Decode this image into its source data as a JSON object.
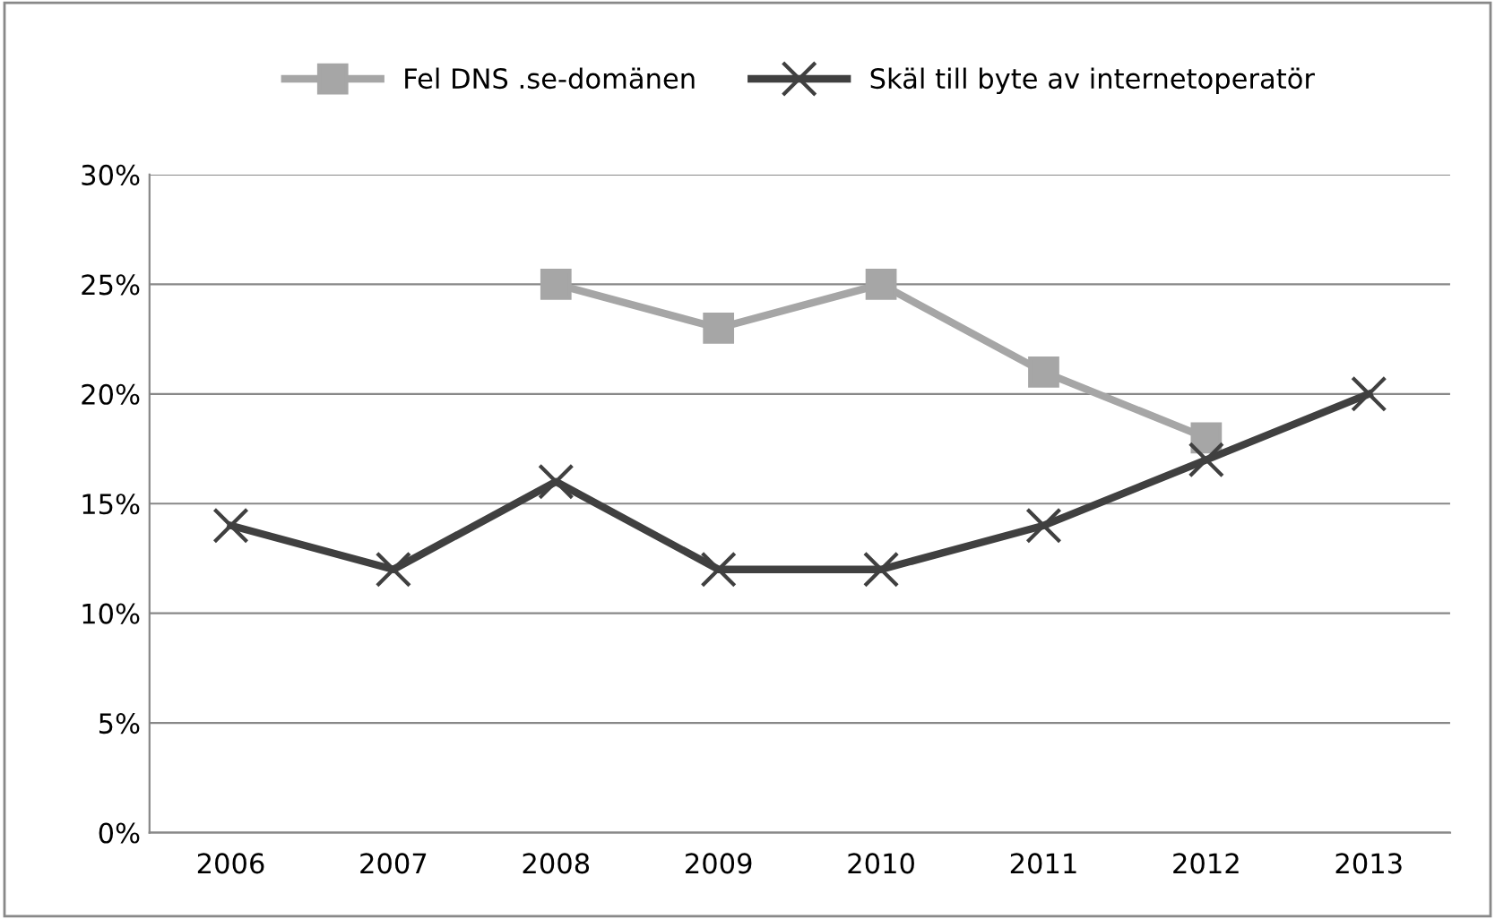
{
  "chart_data": {
    "type": "line",
    "categories": [
      "2006",
      "2007",
      "2008",
      "2009",
      "2010",
      "2011",
      "2012",
      "2013"
    ],
    "series": [
      {
        "name": "Fel DNS .se-domänen",
        "color": "#a6a6a6",
        "marker": "square",
        "values": [
          null,
          null,
          25,
          23,
          25,
          21,
          18,
          null
        ]
      },
      {
        "name": "Skäl till byte av internetoperatör",
        "color": "#404040",
        "marker": "cross",
        "values": [
          14,
          12,
          16,
          12,
          12,
          14,
          17,
          20
        ]
      }
    ],
    "ylim": [
      0,
      30
    ],
    "yticks": [
      {
        "value": 0,
        "label": "0%"
      },
      {
        "value": 5,
        "label": "5%"
      },
      {
        "value": 10,
        "label": "10%"
      },
      {
        "value": 15,
        "label": "15%"
      },
      {
        "value": 20,
        "label": "20%"
      },
      {
        "value": 25,
        "label": "25%"
      },
      {
        "value": 30,
        "label": "30%"
      }
    ],
    "grid": "y",
    "legend": "top",
    "line_style": "solid"
  }
}
